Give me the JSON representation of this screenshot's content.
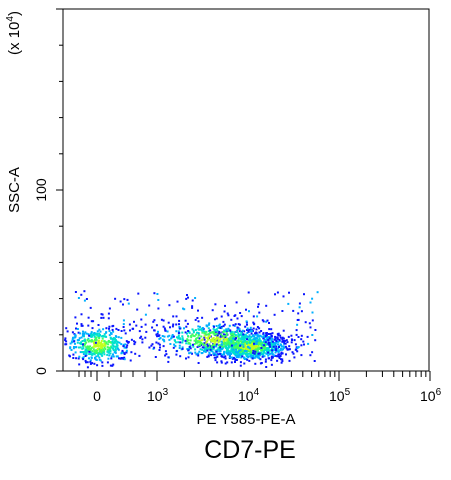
{
  "chart_data": {
    "type": "scatter",
    "style": "density-pseudocolor",
    "title": "CD7-PE",
    "xlabel": "PE Y585-PE-A",
    "ylabel": "SSC-A",
    "y_multiplier": "(x 10",
    "y_multiplier_exp": "4",
    "x_scale": "biexponential",
    "xlim": [
      -600,
      1000000
    ],
    "ylim": [
      0,
      200
    ],
    "x_ticks": [
      {
        "base": "0",
        "exp": "",
        "value": 0
      },
      {
        "base": "10",
        "exp": "3",
        "value": 1000
      },
      {
        "base": "10",
        "exp": "4",
        "value": 10000
      },
      {
        "base": "10",
        "exp": "5",
        "value": 100000
      },
      {
        "base": "10",
        "exp": "6",
        "value": 1000000
      }
    ],
    "y_ticks": [
      {
        "label": "0",
        "value": 0
      },
      {
        "label": "100",
        "value": 100
      }
    ],
    "colors": {
      "low": "#0a14ff",
      "mid_low": "#00b0ff",
      "mid": "#00e0d0",
      "mid_high": "#40ff60",
      "high": "#c0ff20"
    },
    "populations": [
      {
        "x_center": 0,
        "y_center": 15,
        "n": 420
      },
      {
        "x_center": 10000,
        "y_center": 14,
        "n": 900
      },
      {
        "x_center": 4000,
        "y_center": 18,
        "n": 500
      }
    ],
    "grid": false,
    "legend": "none"
  }
}
